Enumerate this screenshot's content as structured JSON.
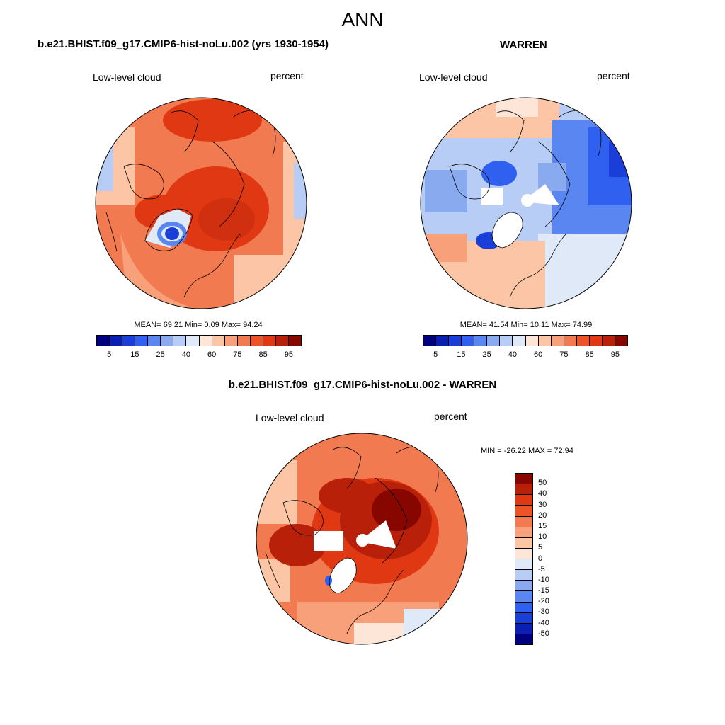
{
  "title": "ANN",
  "panels": {
    "model": {
      "title": "b.e21.BHIST.f09_g17.CMIP6-hist-noLu.002 (yrs 1930-1954)",
      "left_label": "Low-level cloud",
      "right_label": "percent",
      "stats": "MEAN=  69.21  Min=   0.09  Max=  94.24"
    },
    "obs": {
      "title": "WARREN",
      "left_label": "Low-level cloud",
      "right_label": "percent",
      "stats": "MEAN=  41.54  Min=  10.11  Max=  74.99"
    },
    "diff": {
      "title": "b.e21.BHIST.f09_g17.CMIP6-hist-noLu.002 - WARREN",
      "left_label": "Low-level cloud",
      "right_label": "percent",
      "stats": "MIN = -26.22 MAX =  72.94"
    }
  },
  "colorbar_abs": {
    "colors": [
      "#00007f",
      "#0a1fb0",
      "#1a3fd8",
      "#3060f0",
      "#5a86f2",
      "#8aaaf0",
      "#b8cdf5",
      "#dfe9f8",
      "#fde6d8",
      "#fbc5a6",
      "#f7a07a",
      "#f27a50",
      "#ec5428",
      "#e03812",
      "#b8200a",
      "#870600"
    ],
    "tick_labels": [
      "5",
      "15",
      "25",
      "40",
      "60",
      "75",
      "85",
      "95"
    ]
  },
  "colorbar_diff": {
    "colors": [
      "#870600",
      "#b8200a",
      "#e03812",
      "#ec5428",
      "#f27a50",
      "#f7a07a",
      "#fbc5a6",
      "#fde6d8",
      "#dfe9f8",
      "#b8cdf5",
      "#8aaaf0",
      "#5a86f2",
      "#3060f0",
      "#1a3fd8",
      "#0a1fb0",
      "#00007f"
    ],
    "tick_labels": [
      "50",
      "40",
      "30",
      "20",
      "15",
      "10",
      "5",
      "0",
      "-5",
      "-10",
      "-15",
      "-20",
      "-30",
      "-40",
      "-50"
    ]
  }
}
